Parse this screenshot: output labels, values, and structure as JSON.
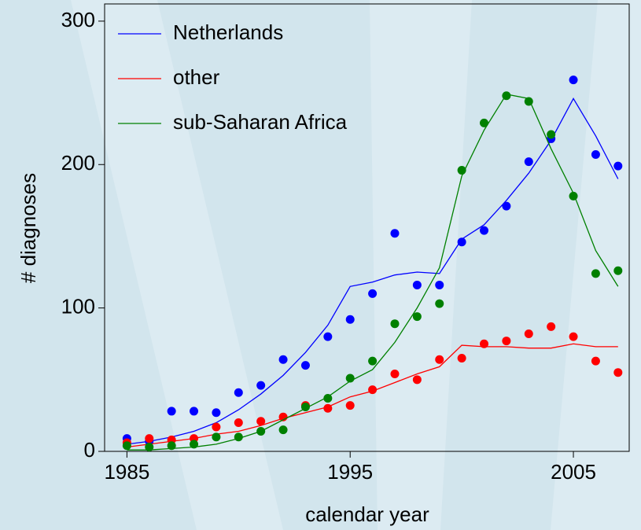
{
  "chart_data": {
    "type": "scatter",
    "x_label": "calendar year",
    "y_label": "# diagnoses",
    "x": [
      1985,
      1986,
      1987,
      1988,
      1989,
      1990,
      1991,
      1992,
      1993,
      1994,
      1995,
      1996,
      1997,
      1998,
      1999,
      2000,
      2001,
      2002,
      2003,
      2004,
      2005,
      2006,
      2007
    ],
    "xlim": [
      1984,
      2007.5
    ],
    "xticks": [
      1985,
      1995,
      2005
    ],
    "ylim": [
      0,
      312
    ],
    "yticks": [
      0,
      100,
      200,
      300
    ],
    "legend": "top-left",
    "series": [
      {
        "name": "Netherlands",
        "color": "#0000ff",
        "values": [
          9,
          7,
          28,
          28,
          27,
          41,
          46,
          64,
          60,
          80,
          92,
          110,
          152,
          116,
          116,
          146,
          154,
          171,
          202,
          218,
          259,
          207,
          199
        ],
        "fit": [
          5,
          7,
          10,
          14,
          20,
          29,
          40,
          53,
          69,
          88,
          115,
          118,
          123,
          125,
          124,
          148,
          158,
          175,
          194,
          217,
          246,
          220,
          190
        ]
      },
      {
        "name": "other",
        "color": "#ff0000",
        "values": [
          6,
          9,
          8,
          9,
          17,
          20,
          21,
          24,
          32,
          30,
          32,
          43,
          54,
          50,
          64,
          65,
          75,
          77,
          82,
          87,
          80,
          63,
          55
        ],
        "fit": [
          3,
          5,
          7,
          9,
          12,
          14,
          18,
          23,
          27,
          31,
          38,
          42,
          48,
          54,
          59,
          74,
          73,
          73,
          72,
          72,
          75,
          73,
          73
        ]
      },
      {
        "name": "sub-Saharan Africa",
        "color": "#008000",
        "values": [
          4,
          3,
          4,
          5,
          10,
          10,
          14,
          15,
          31,
          37,
          51,
          63,
          89,
          94,
          103,
          196,
          229,
          248,
          244,
          221,
          178,
          124,
          126
        ],
        "fit": [
          1,
          1,
          2,
          3,
          5,
          9,
          14,
          22,
          30,
          38,
          49,
          57,
          76,
          100,
          128,
          192,
          224,
          249,
          246,
          211,
          180,
          140,
          115
        ]
      }
    ]
  }
}
